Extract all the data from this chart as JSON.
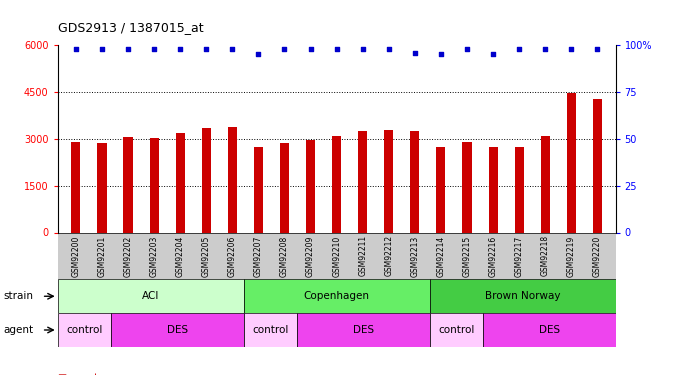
{
  "title": "GDS2913 / 1387015_at",
  "samples": [
    "GSM92200",
    "GSM92201",
    "GSM92202",
    "GSM92203",
    "GSM92204",
    "GSM92205",
    "GSM92206",
    "GSM92207",
    "GSM92208",
    "GSM92209",
    "GSM92210",
    "GSM92211",
    "GSM92212",
    "GSM92213",
    "GSM92214",
    "GSM92215",
    "GSM92216",
    "GSM92217",
    "GSM92218",
    "GSM92219",
    "GSM92220"
  ],
  "counts": [
    2900,
    2870,
    3050,
    3020,
    3200,
    3350,
    3380,
    2750,
    2870,
    2950,
    3080,
    3250,
    3280,
    3250,
    2750,
    2910,
    2750,
    2750,
    3080,
    4480,
    4280
  ],
  "percentile": [
    98,
    98,
    98,
    98,
    98,
    98,
    98,
    95,
    98,
    98,
    98,
    98,
    98,
    96,
    95,
    98,
    95,
    98,
    98,
    98,
    98
  ],
  "ylim_left": [
    0,
    6000
  ],
  "ylim_right": [
    0,
    100
  ],
  "yticks_left": [
    0,
    1500,
    3000,
    4500,
    6000
  ],
  "yticks_right": [
    0,
    25,
    50,
    75,
    100
  ],
  "bar_color": "#cc0000",
  "dot_color": "#0000cc",
  "strain_groups": [
    {
      "label": "ACI",
      "start": 0,
      "end": 7,
      "color": "#ccffcc"
    },
    {
      "label": "Copenhagen",
      "start": 7,
      "end": 14,
      "color": "#66ee66"
    },
    {
      "label": "Brown Norway",
      "start": 14,
      "end": 21,
      "color": "#44cc44"
    }
  ],
  "agent_groups": [
    {
      "label": "control",
      "start": 0,
      "end": 2,
      "color": "#ffccff"
    },
    {
      "label": "DES",
      "start": 2,
      "end": 7,
      "color": "#ee44ee"
    },
    {
      "label": "control",
      "start": 7,
      "end": 9,
      "color": "#ffccff"
    },
    {
      "label": "DES",
      "start": 9,
      "end": 14,
      "color": "#ee44ee"
    },
    {
      "label": "control",
      "start": 14,
      "end": 16,
      "color": "#ffccff"
    },
    {
      "label": "DES",
      "start": 16,
      "end": 21,
      "color": "#ee44ee"
    }
  ],
  "xlabel_strain": "strain",
  "xlabel_agent": "agent",
  "legend_count_color": "#cc0000",
  "legend_dot_color": "#0000cc",
  "bg_color": "#ffffff",
  "tick_area_color": "#cccccc"
}
